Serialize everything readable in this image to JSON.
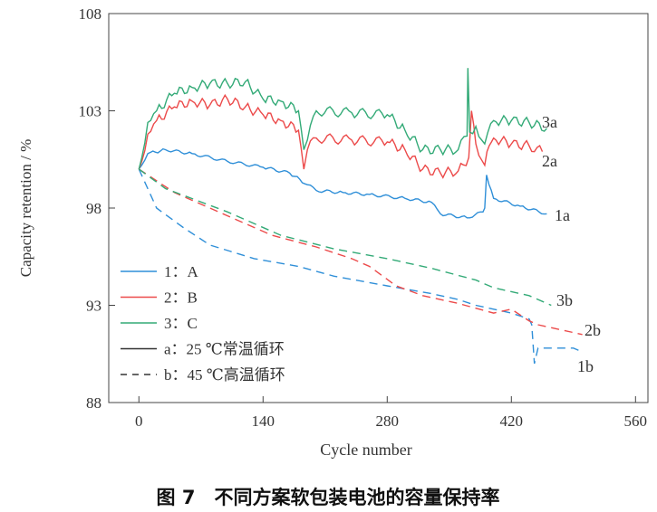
{
  "chart_data": {
    "type": "line",
    "title": "",
    "caption": "图 7　不同方案软包装电池的容量保持率",
    "xlabel": "Cycle number",
    "ylabel": "Capacity retention / %",
    "xlim": [
      -34,
      574
    ],
    "ylim": [
      88,
      108
    ],
    "xticks": [
      0,
      140,
      280,
      420,
      560
    ],
    "yticks": [
      88,
      93,
      98,
      103,
      108
    ],
    "legend": {
      "placement": "bottom-left",
      "entries": [
        {
          "label": "1：A",
          "color": "#2f8fd8",
          "dash": false
        },
        {
          "label": "2：B",
          "color": "#ec4a4a",
          "dash": false
        },
        {
          "label": "3：C",
          "color": "#33aa77",
          "dash": false
        },
        {
          "label": "a：25 ℃常温循环",
          "color": "#333333",
          "dash": false
        },
        {
          "label": "b：45 ℃高温循环",
          "color": "#333333",
          "dash": true
        }
      ]
    },
    "series": [
      {
        "name": "1a",
        "color": "#2f8fd8",
        "dash": false,
        "x": [
          0,
          10,
          30,
          60,
          100,
          140,
          170,
          190,
          200,
          230,
          260,
          300,
          330,
          340,
          370,
          388,
          390,
          392,
          400,
          430,
          460
        ],
        "y": [
          100,
          100.8,
          101.0,
          100.8,
          100.4,
          100.1,
          99.8,
          99.2,
          98.9,
          98.8,
          98.7,
          98.5,
          98.3,
          97.7,
          97.5,
          97.8,
          98,
          99.7,
          98.5,
          98.1,
          97.7
        ]
      },
      {
        "name": "2a",
        "color": "#ec4a4a",
        "dash": false,
        "x": [
          0,
          10,
          20,
          40,
          60,
          80,
          100,
          120,
          140,
          160,
          180,
          186,
          190,
          200,
          240,
          280,
          300,
          320,
          340,
          360,
          372,
          375,
          380,
          390,
          395,
          400,
          420,
          440,
          455
        ],
        "y": [
          100,
          101.8,
          102.5,
          103.2,
          103.5,
          103.3,
          103.6,
          103.2,
          102.8,
          102.5,
          102,
          100,
          101,
          101.6,
          101.5,
          101.4,
          101,
          100,
          99.8,
          99.9,
          100.6,
          103,
          101.3,
          100.2,
          101.2,
          101.6,
          101.3,
          101.2,
          100.9
        ]
      },
      {
        "name": "3a",
        "color": "#33aa77",
        "dash": false,
        "x": [
          0,
          10,
          20,
          40,
          60,
          80,
          100,
          120,
          140,
          160,
          180,
          186,
          190,
          200,
          240,
          280,
          300,
          320,
          340,
          360,
          370,
          371,
          373,
          380,
          390,
          400,
          420,
          440,
          460
        ],
        "y": [
          100,
          102.4,
          103,
          103.9,
          104.2,
          104.4,
          104.4,
          104.5,
          103.6,
          103.5,
          103,
          101,
          101.5,
          103,
          102.9,
          102.8,
          102,
          101,
          101,
          101,
          101.7,
          105.2,
          101.9,
          102.2,
          101.3,
          102.5,
          102.5,
          102.4,
          102.1
        ]
      },
      {
        "name": "1b",
        "color": "#2f8fd8",
        "dash": true,
        "x": [
          0,
          20,
          50,
          80,
          130,
          180,
          220,
          280,
          330,
          360,
          380,
          420,
          440,
          443,
          446,
          450,
          490,
          500
        ],
        "y": [
          100,
          98,
          97,
          96.1,
          95.4,
          95,
          94.5,
          94,
          93.6,
          93.3,
          93,
          92.6,
          92.3,
          92,
          90,
          90.8,
          90.8,
          90.6
        ]
      },
      {
        "name": "2b",
        "color": "#ec4a4a",
        "dash": true,
        "x": [
          0,
          40,
          100,
          150,
          200,
          240,
          260,
          290,
          320,
          360,
          400,
          420,
          440,
          450,
          500
        ],
        "y": [
          100,
          98.8,
          97.6,
          96.6,
          96,
          95.4,
          95,
          94,
          93.5,
          93.1,
          92.6,
          92.8,
          92.2,
          92,
          91.5
        ]
      },
      {
        "name": "3b",
        "color": "#33aa77",
        "dash": true,
        "x": [
          0,
          30,
          100,
          160,
          220,
          280,
          330,
          380,
          400,
          440,
          465
        ],
        "y": [
          100,
          99,
          97.8,
          96.6,
          95.9,
          95.4,
          94.9,
          94.3,
          93.9,
          93.5,
          93
        ]
      }
    ]
  }
}
